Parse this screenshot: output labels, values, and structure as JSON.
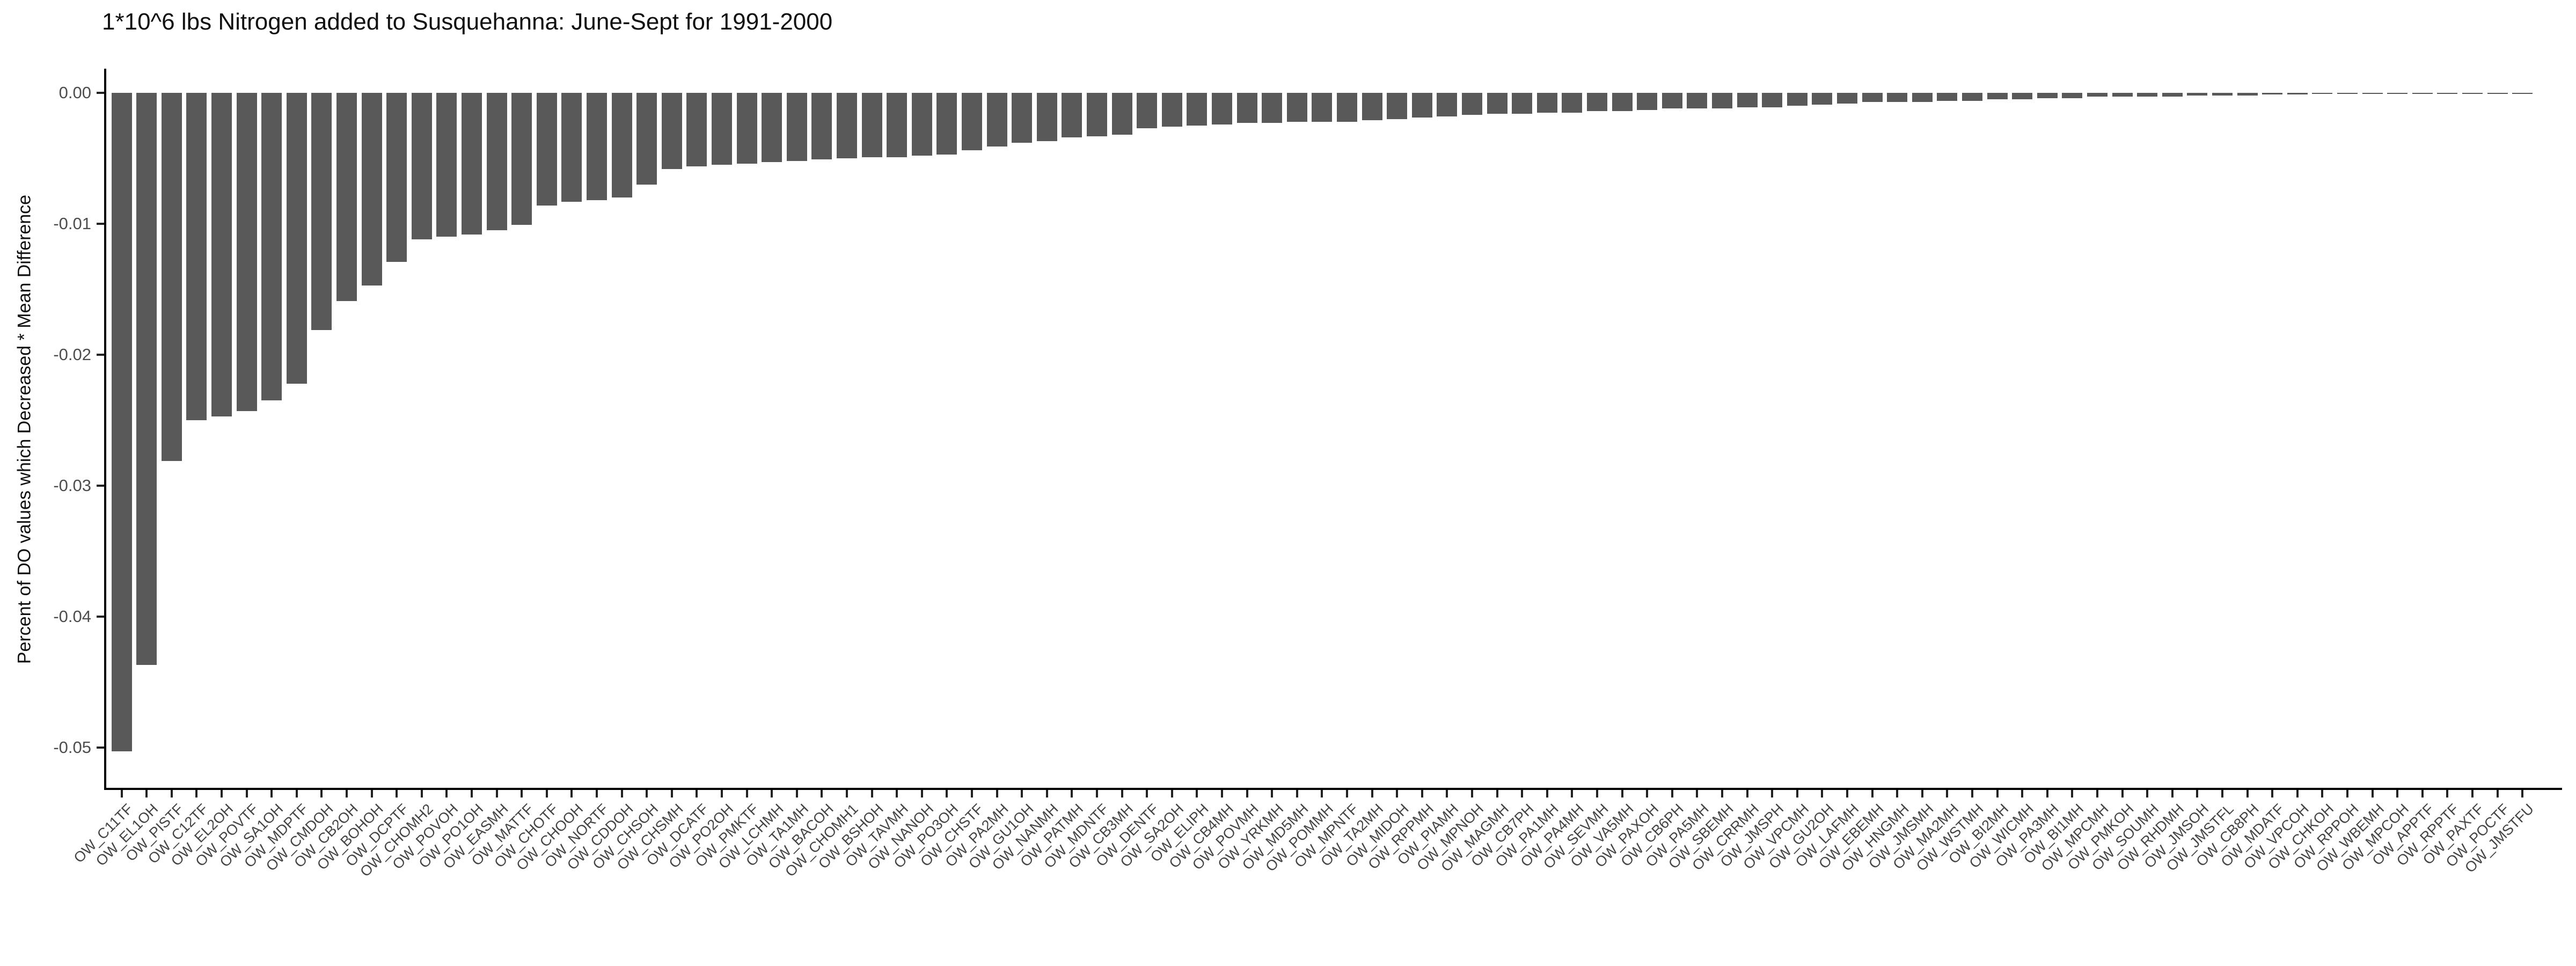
{
  "chart_data": {
    "type": "bar",
    "title": "1*10^6 lbs Nitrogen added to Susquehanna: June-Sept for 1991-2000",
    "xlabel": "",
    "ylabel": "Percent of DO values which Decreased * Mean Difference",
    "grid": "off",
    "legend": "none",
    "bar_color": "#595959",
    "axis_color": "#000000",
    "tick_label_color": "#4d4d4d",
    "ylim": [
      -0.052,
      0.0
    ],
    "yticks": [
      "0.00",
      "-0.01",
      "-0.02",
      "-0.03",
      "-0.04",
      "-0.05"
    ],
    "ytick_values": [
      0,
      -0.01,
      -0.02,
      -0.03,
      -0.04,
      -0.05
    ],
    "categories": [
      "OW_C11TF",
      "OW_EL1OH",
      "OW_PISTF",
      "OW_C12TF",
      "OW_EL2OH",
      "OW_POVTF",
      "OW_SA1OH",
      "OW_MDPTF",
      "OW_CMDOH",
      "OW_CB2OH",
      "OW_BOHOH",
      "OW_DCPTF",
      "OW_CHOMH2",
      "OW_POVOH",
      "OW_PO1OH",
      "OW_EASMH",
      "OW_MATTF",
      "OW_CHOTF",
      "OW_CHOOH",
      "OW_NORTF",
      "OW_CDDOH",
      "OW_CHSOH",
      "OW_CHSMH",
      "OW_DCATF",
      "OW_PO2OH",
      "OW_PMKTF",
      "OW_LCHMH",
      "OW_TA1MH",
      "OW_BACOH",
      "OW_CHOMH1",
      "OW_BSHOH",
      "OW_TAVMH",
      "OW_NANOH",
      "OW_PO3OH",
      "OW_CHSTF",
      "OW_PA2MH",
      "OW_GU1OH",
      "OW_NANMH",
      "OW_PATMH",
      "OW_MDNTF",
      "OW_CB3MH",
      "OW_DENTF",
      "OW_SA2OH",
      "OW_ELIPH",
      "OW_CB4MH",
      "OW_POVMH",
      "OW_YRKMH",
      "OW_MD5MH",
      "OW_POMMH",
      "OW_MPNTF",
      "OW_TA2MH",
      "OW_MIDOH",
      "OW_RPPMH",
      "OW_PIAMH",
      "OW_MPNOH",
      "OW_MAGMH",
      "OW_CB7PH",
      "OW_PA1MH",
      "OW_PA4MH",
      "OW_SEVMH",
      "OW_VA5MH",
      "OW_PAXOH",
      "OW_CB6PH",
      "OW_PA5MH",
      "OW_SBEMH",
      "OW_CRRMH",
      "OW_JMSPH",
      "OW_VPCMH",
      "OW_GU2OH",
      "OW_LAFMH",
      "OW_EBEMH",
      "OW_HNGMH",
      "OW_JMSMH",
      "OW_MA2MH",
      "OW_WSTMH",
      "OW_BI2MH",
      "OW_WICMH",
      "OW_PA3MH",
      "OW_BI1MH",
      "OW_MPCMH",
      "OW_PMKOH",
      "OW_SOUMH",
      "OW_RHDMH",
      "OW_JMSOH",
      "OW_JMSTFL",
      "OW_CB8PH",
      "OW_MDATF",
      "OW_VPCOH",
      "OW_CHKOH",
      "OW_RPPOH",
      "OW_WBEMH",
      "OW_MPCOH",
      "OW_APPTF",
      "OW_RPPTF",
      "OW_PAXTF",
      "OW_POCTF",
      "OW_JMSTFU"
    ],
    "values": [
      -0.0503,
      -0.0437,
      -0.0281,
      -0.025,
      -0.0247,
      -0.0243,
      -0.0235,
      -0.0222,
      -0.0181,
      -0.0159,
      -0.0147,
      -0.0129,
      -0.0112,
      -0.011,
      -0.0108,
      -0.0105,
      -0.0101,
      -0.0086,
      -0.0083,
      -0.0082,
      -0.008,
      -0.007,
      -0.0058,
      -0.0056,
      -0.0055,
      -0.0054,
      -0.0053,
      -0.0052,
      -0.0051,
      -0.005,
      -0.0049,
      -0.0049,
      -0.0048,
      -0.0047,
      -0.0044,
      -0.0041,
      -0.0038,
      -0.0037,
      -0.0034,
      -0.0033,
      -0.0032,
      -0.0027,
      -0.0026,
      -0.0025,
      -0.0024,
      -0.0023,
      -0.0023,
      -0.0022,
      -0.0022,
      -0.0022,
      -0.0021,
      -0.002,
      -0.0019,
      -0.0018,
      -0.0017,
      -0.0016,
      -0.0016,
      -0.0015,
      -0.0015,
      -0.0014,
      -0.0014,
      -0.0013,
      -0.0012,
      -0.0012,
      -0.0012,
      -0.0011,
      -0.0011,
      -0.001,
      -0.0009,
      -0.0008,
      -0.0007,
      -0.0007,
      -0.0007,
      -0.0006,
      -0.0006,
      -0.0005,
      -0.0005,
      -0.0004,
      -0.0004,
      -0.0003,
      -0.0003,
      -0.0003,
      -0.0003,
      -0.0002,
      -0.0002,
      -0.0002,
      -0.00013,
      -0.00011,
      -0.0001,
      -9e-05,
      -8e-05,
      -7e-05,
      -6e-05,
      -5e-05,
      -4e-05,
      -3e-05,
      -2e-05
    ]
  }
}
